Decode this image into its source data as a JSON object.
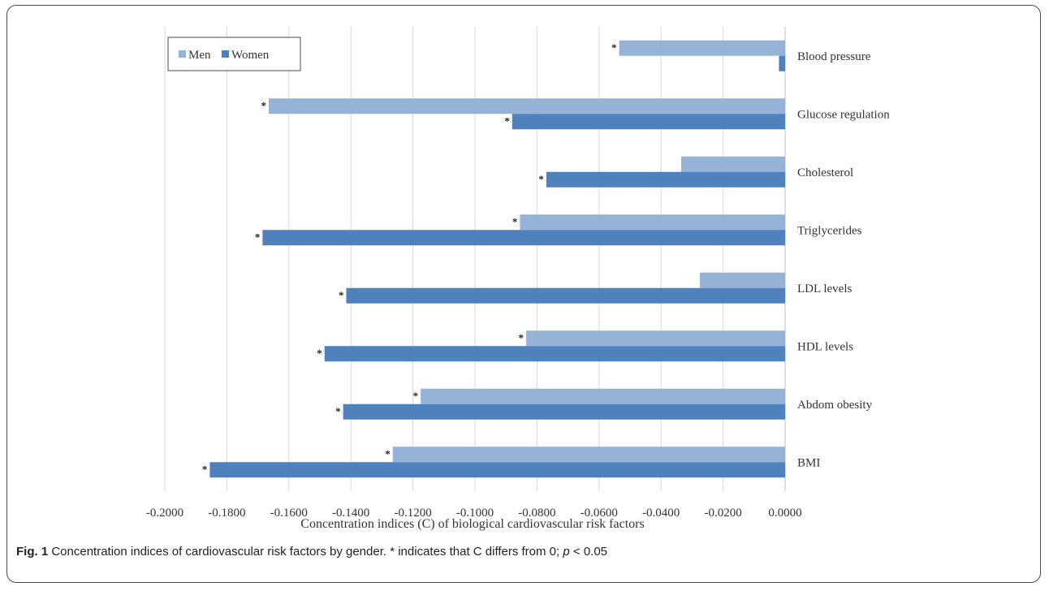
{
  "caption": {
    "label": "Fig. 1",
    "text_before_p": " Concentration indices of cardiovascular risk factors by gender. * indicates that C differs from 0; ",
    "p": "p",
    "text_after_p": " < 0.05"
  },
  "chart_data": {
    "type": "bar",
    "orientation": "horizontal",
    "title": "",
    "xlabel": "Concentration indices (C) of biological cardiovascular risk factors",
    "ylabel": "",
    "xlim": [
      -0.2,
      0.0
    ],
    "xticks": [
      -0.2,
      -0.18,
      -0.16,
      -0.14,
      -0.12,
      -0.1,
      -0.08,
      -0.06,
      -0.04,
      -0.02,
      0.0
    ],
    "xtick_labels": [
      "-0.2000",
      "-0.1800",
      "-0.1600",
      "-0.1400",
      "-0.1200",
      "-0.1000",
      "-0.0800",
      "-0.0600",
      "-0.0400",
      "-0.0200",
      "0.0000"
    ],
    "grid": true,
    "legend_position": "top-left",
    "significance_marker": "*",
    "categories": [
      "Blood pressure",
      "Glucose regulation",
      "Cholesterol",
      "Triglycerides",
      "LDL levels",
      "HDL levels",
      "Abdom obesity",
      "BMI"
    ],
    "series": [
      {
        "name": "Men",
        "color": "#95b3d7",
        "values": [
          -0.0535,
          -0.1665,
          -0.0335,
          -0.0855,
          -0.0275,
          -0.0835,
          -0.1175,
          -0.1265
        ],
        "significant": [
          true,
          true,
          false,
          true,
          false,
          true,
          true,
          true
        ]
      },
      {
        "name": "Women",
        "color": "#4f81bd",
        "values": [
          -0.002,
          -0.088,
          -0.077,
          -0.1685,
          -0.1415,
          -0.1485,
          -0.1425,
          -0.1855
        ],
        "significant": [
          false,
          true,
          true,
          true,
          true,
          true,
          true,
          true
        ]
      }
    ]
  }
}
